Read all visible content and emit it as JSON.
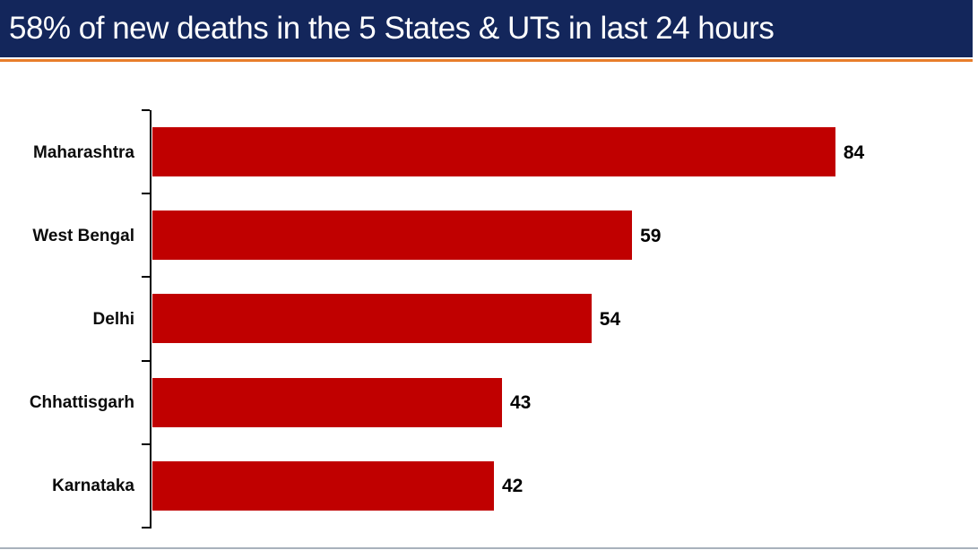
{
  "header": {
    "title": "58% of new deaths in the 5 States & UTs in last 24 hours",
    "bg_color": "#13265B",
    "accent_color": "#E87D2B"
  },
  "chart_data": {
    "type": "bar",
    "orientation": "horizontal",
    "title": "58% of new deaths in the 5 States & UTs in last 24 hours",
    "categories": [
      "Maharashtra",
      "West Bengal",
      "Delhi",
      "Chhattisgarh",
      "Karnataka"
    ],
    "values": [
      84,
      59,
      54,
      43,
      42
    ],
    "xlim": [
      0,
      100
    ],
    "bar_color": "#C00000",
    "axis_color": "#000000",
    "data_labels": true,
    "grid": false,
    "legend": false
  },
  "footer": {
    "line_color": "#A8B2BC"
  }
}
